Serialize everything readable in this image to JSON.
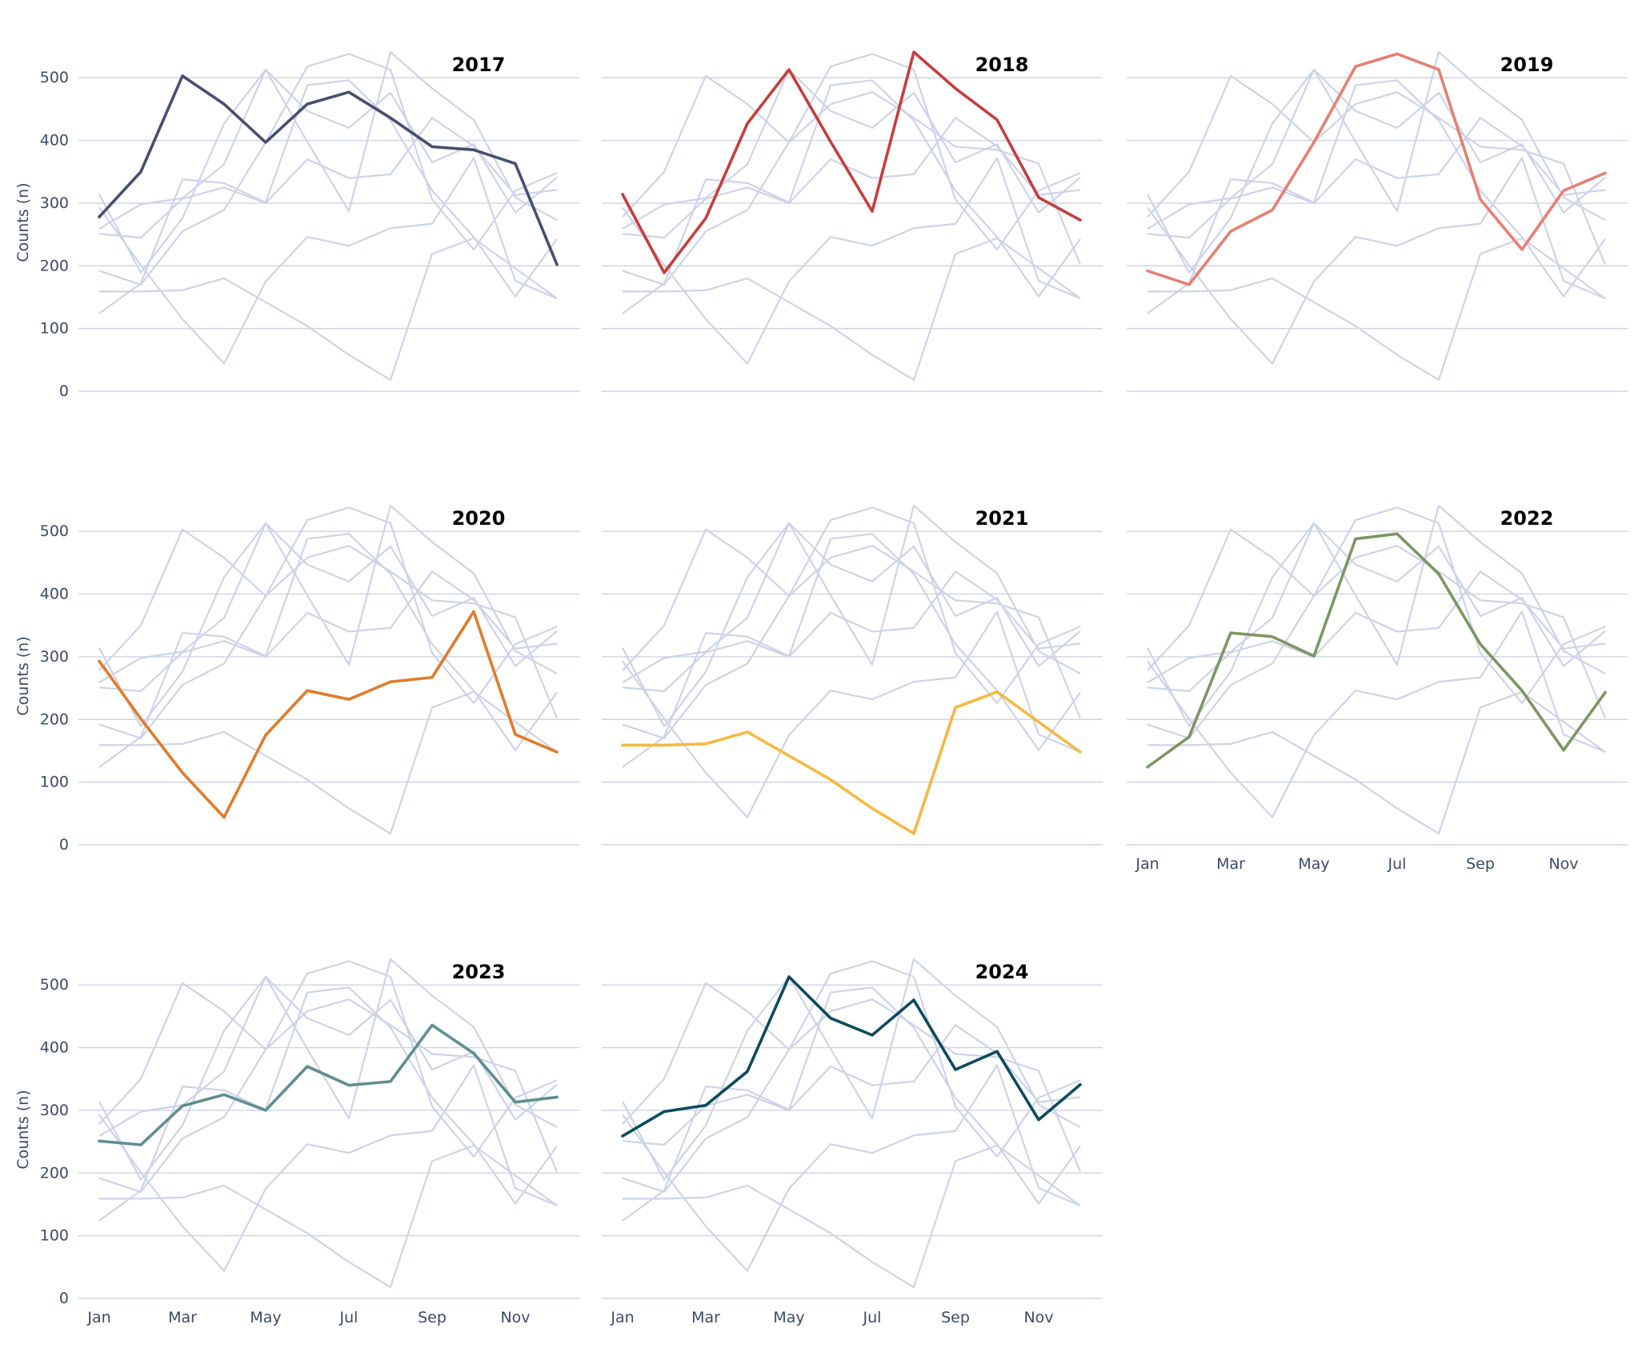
{
  "chart_data": {
    "type": "line",
    "layout": "small-multiples",
    "ylabel": "Counts (n)",
    "xlabel": "",
    "ylim": [
      0,
      550
    ],
    "yticks": [
      0,
      100,
      200,
      300,
      400,
      500
    ],
    "x": [
      "Jan",
      "Feb",
      "Mar",
      "Apr",
      "May",
      "Jun",
      "Jul",
      "Aug",
      "Sep",
      "Oct",
      "Nov",
      "Dec"
    ],
    "xtick_labels": [
      "Jan",
      "Mar",
      "May",
      "Jul",
      "Sep",
      "Nov"
    ],
    "grid": true,
    "background_line_color": "#cdd3e8",
    "series": [
      {
        "name": "2017",
        "color": "#474f6e",
        "values": [
          278,
          350,
          503,
          458,
          397,
          458,
          477,
          436,
          390,
          385,
          363,
          202
        ]
      },
      {
        "name": "2018",
        "color": "#c63d3c",
        "values": [
          314,
          189,
          276,
          427,
          513,
          398,
          287,
          541,
          483,
          433,
          309,
          273
        ]
      },
      {
        "name": "2019",
        "color": "#e87e72",
        "values": [
          192,
          170,
          255,
          289,
          397,
          518,
          538,
          513,
          306,
          226,
          320,
          348
        ]
      },
      {
        "name": "2020",
        "color": "#e07b2a",
        "values": [
          293,
          201,
          115,
          44,
          175,
          246,
          232,
          260,
          267,
          372,
          176,
          148
        ]
      },
      {
        "name": "2021",
        "color": "#f5b83f",
        "values": [
          159,
          159,
          161,
          180,
          142,
          104,
          58,
          18,
          219,
          244,
          196,
          148
        ]
      },
      {
        "name": "2022",
        "color": "#7c9663",
        "values": [
          124,
          172,
          338,
          332,
          301,
          488,
          496,
          432,
          320,
          246,
          151,
          243
        ]
      },
      {
        "name": "2023",
        "color": "#5f8e90",
        "values": [
          251,
          245,
          307,
          325,
          300,
          370,
          340,
          346,
          436,
          391,
          313,
          321
        ]
      },
      {
        "name": "2024",
        "color": "#0d4a5c",
        "values": [
          259,
          298,
          308,
          362,
          513,
          447,
          420,
          476,
          365,
          394,
          285,
          341
        ]
      }
    ]
  }
}
